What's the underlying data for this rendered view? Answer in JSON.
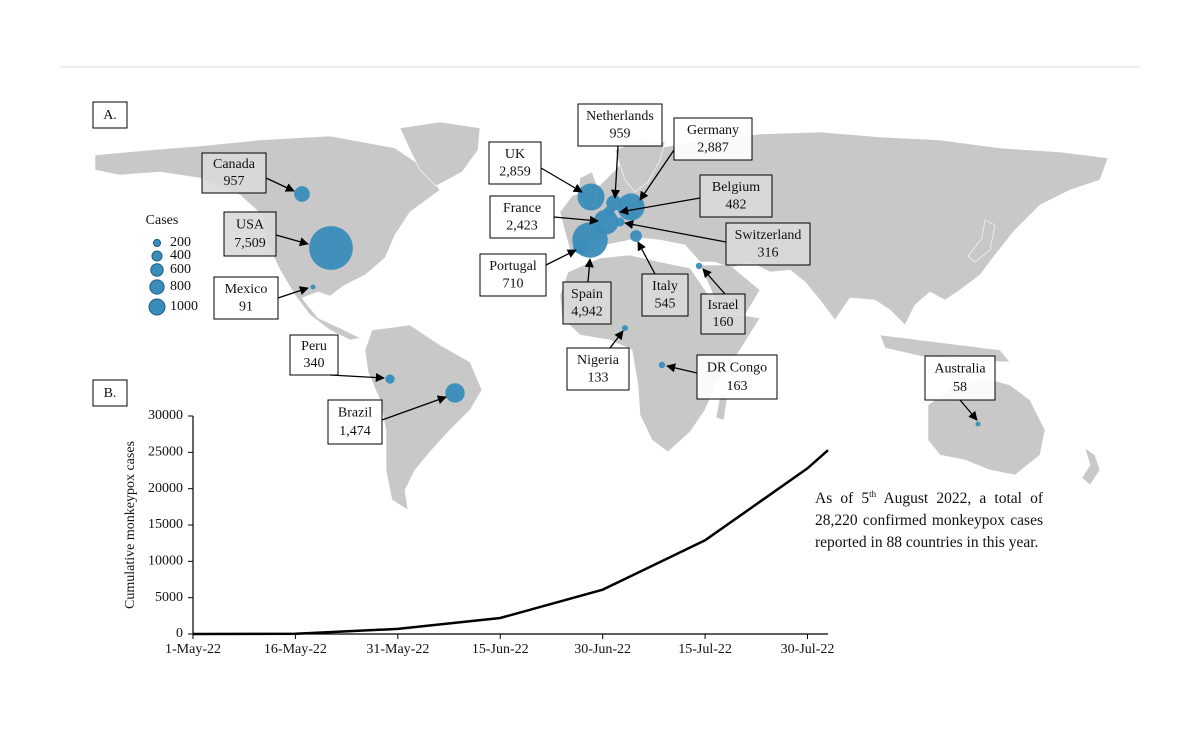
{
  "panel_labels": [
    "A.",
    "B."
  ],
  "chart_data": [
    {
      "type": "bubble-map",
      "legend_title": "Cases",
      "size_legend": [
        200,
        400,
        600,
        800,
        1000
      ],
      "color": "#3a8dbb",
      "categories": [
        "Canada",
        "USA",
        "Mexico",
        "Peru",
        "Brazil",
        "UK",
        "Netherlands",
        "Germany",
        "Belgium",
        "France",
        "Portugal",
        "Spain",
        "Switzerland",
        "Italy",
        "Israel",
        "Nigeria",
        "DR Congo",
        "Australia"
      ],
      "values": [
        957,
        7509,
        91,
        340,
        1474,
        2859,
        959,
        2887,
        482,
        2423,
        710,
        4942,
        316,
        545,
        160,
        133,
        163,
        58
      ],
      "value_labels": [
        "957",
        "7,509",
        "91",
        "340",
        "1,474",
        "2,859",
        "959",
        "2,887",
        "482",
        "2,423",
        "710",
        "4,942",
        "316",
        "545",
        "160",
        "133",
        "163",
        "58"
      ]
    },
    {
      "type": "line",
      "ylabel": "Cumulative monkeypox cases",
      "x": [
        0,
        15,
        30,
        45,
        60,
        75,
        90,
        93
      ],
      "values": [
        0,
        30,
        700,
        2200,
        6100,
        12900,
        22800,
        25300
      ],
      "color": "#000000",
      "xlim": [
        0,
        93
      ],
      "ylim": [
        0,
        30000
      ],
      "yticks": [
        0,
        5000,
        10000,
        15000,
        20000,
        25000,
        30000
      ],
      "xticks": [
        {
          "value": 0,
          "label": "1-May-22"
        },
        {
          "value": 15,
          "label": "16-May-22"
        },
        {
          "value": 30,
          "label": "31-May-22"
        },
        {
          "value": 45,
          "label": "15-Jun-22"
        },
        {
          "value": 60,
          "label": "30-Jun-22"
        },
        {
          "value": 75,
          "label": "15-Jul-22"
        },
        {
          "value": 90,
          "label": "30-Jul-22"
        }
      ]
    }
  ],
  "note": {
    "before": "As of 5",
    "sup": "th",
    "after": " August 2022, a total of 28,220 confirmed monkeypox cases reported in 88 countries in this year."
  }
}
